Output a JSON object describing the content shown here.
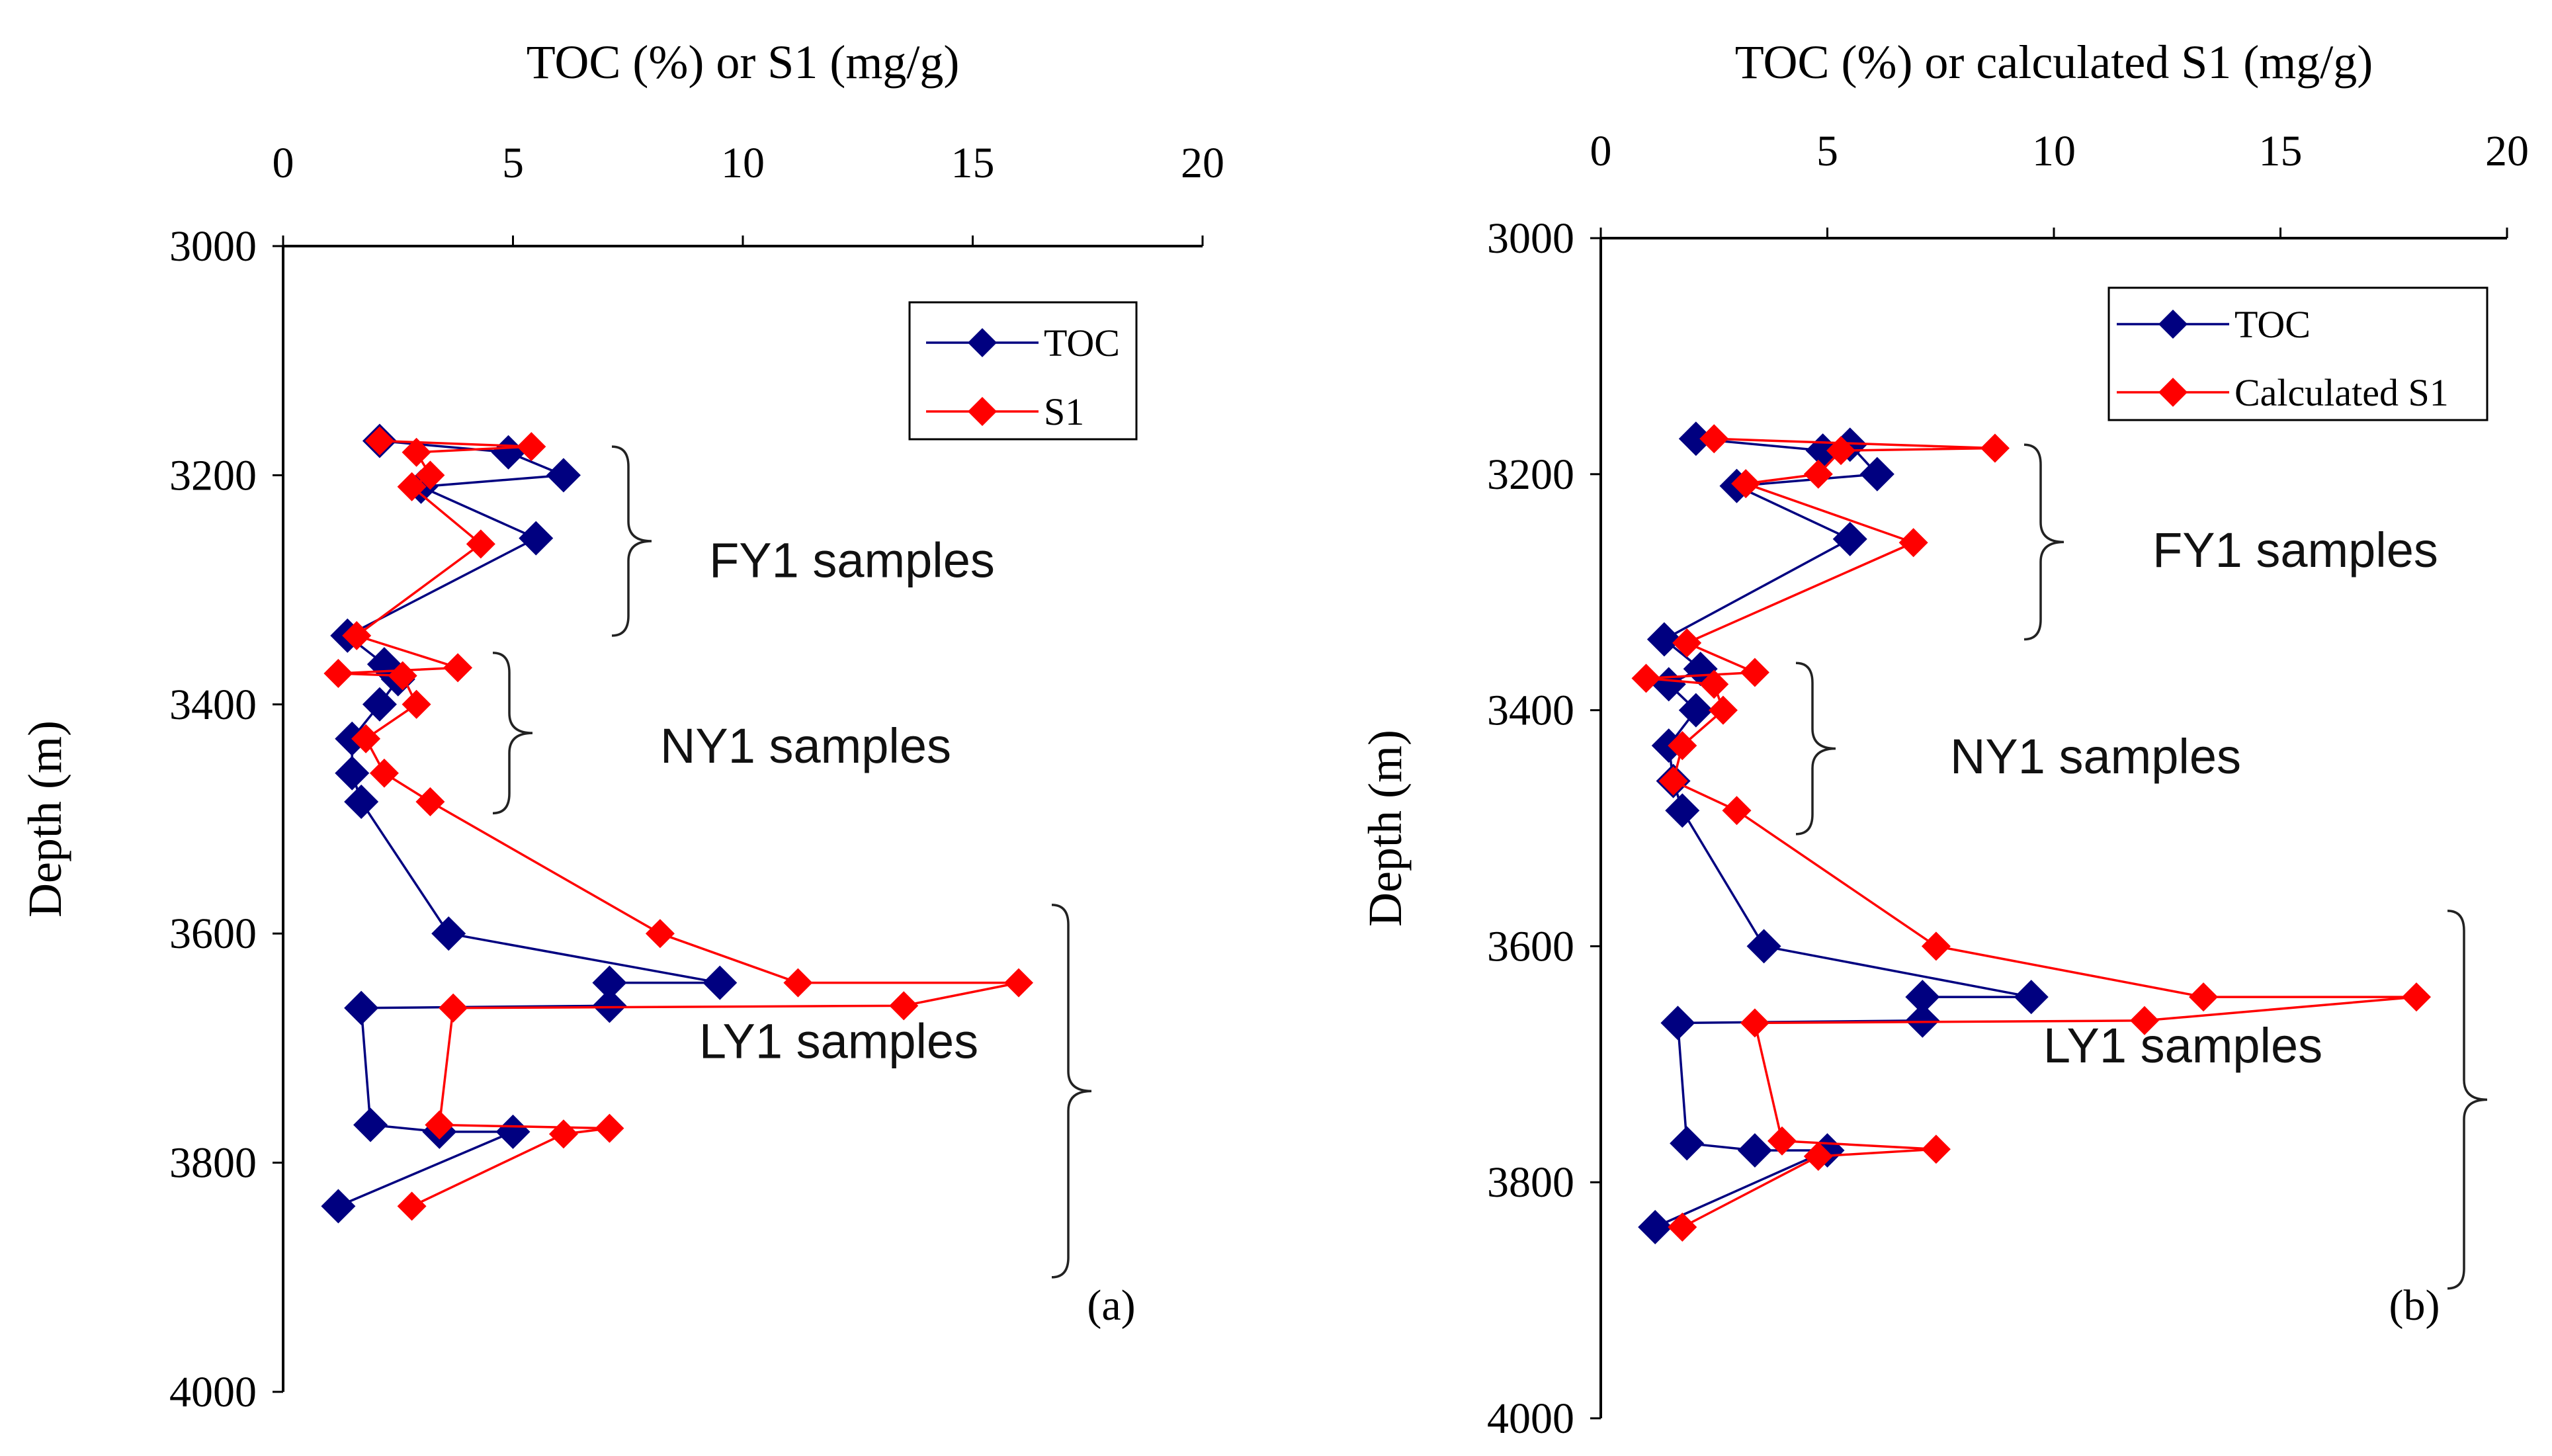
{
  "chart_data": [
    {
      "type": "line",
      "panel_label": "(a)",
      "title": "TOC (%) or S1 (mg/g)",
      "xlabel": "TOC (%) or S1 (mg/g)",
      "ylabel": "Depth (m)",
      "xlim": [
        0,
        20
      ],
      "ylim": [
        3000,
        4000
      ],
      "y_inverted": true,
      "x_axis_position": "top",
      "x_ticks": [
        "0",
        "5",
        "10",
        "15",
        "20"
      ],
      "y_ticks": [
        "3000",
        "3200",
        "3400",
        "3600",
        "3800",
        "4000"
      ],
      "legend_position": "top-right",
      "series": [
        {
          "name": "TOC",
          "color": "#000080",
          "points": [
            [
              2.1,
              3170
            ],
            [
              4.9,
              3180
            ],
            [
              6.1,
              3200
            ],
            [
              3.0,
              3210
            ],
            [
              5.5,
              3255
            ],
            [
              1.4,
              3340
            ],
            [
              2.2,
              3365
            ],
            [
              2.5,
              3378
            ],
            [
              2.1,
              3400
            ],
            [
              1.5,
              3430
            ],
            [
              1.5,
              3460
            ],
            [
              1.7,
              3485
            ],
            [
              3.6,
              3600
            ],
            [
              9.5,
              3643
            ],
            [
              7.1,
              3643
            ],
            [
              7.1,
              3663
            ],
            [
              1.7,
              3665
            ],
            [
              1.9,
              3767
            ],
            [
              3.4,
              3773
            ],
            [
              5.0,
              3773
            ],
            [
              1.2,
              3838
            ]
          ]
        },
        {
          "name": "S1",
          "color": "#ff0000",
          "points": [
            [
              2.1,
              3170
            ],
            [
              5.4,
              3175
            ],
            [
              2.9,
              3180
            ],
            [
              3.2,
              3200
            ],
            [
              2.8,
              3210
            ],
            [
              4.3,
              3260
            ],
            [
              1.6,
              3340
            ],
            [
              3.8,
              3368
            ],
            [
              1.2,
              3373
            ],
            [
              2.6,
              3375
            ],
            [
              2.9,
              3400
            ],
            [
              1.8,
              3430
            ],
            [
              2.2,
              3460
            ],
            [
              3.2,
              3485
            ],
            [
              8.2,
              3600
            ],
            [
              11.2,
              3643
            ],
            [
              16.0,
              3643
            ],
            [
              13.5,
              3663
            ],
            [
              3.7,
              3665
            ],
            [
              3.4,
              3767
            ],
            [
              7.1,
              3770
            ],
            [
              6.1,
              3775
            ],
            [
              2.8,
              3838
            ]
          ]
        }
      ],
      "annotations": [
        "FY1 samples",
        "NY1 samples",
        "LY1 samples"
      ]
    },
    {
      "type": "line",
      "panel_label": "(b)",
      "title": "TOC (%) or calculated S1 (mg/g)",
      "xlabel": "TOC (%) or calculated S1 (mg/g)",
      "ylabel": "Depth (m)",
      "xlim": [
        0,
        20
      ],
      "ylim": [
        3000,
        4000
      ],
      "y_inverted": true,
      "x_axis_position": "top",
      "x_ticks": [
        "0",
        "5",
        "10",
        "15",
        "20"
      ],
      "y_ticks": [
        "3000",
        "3200",
        "3400",
        "3600",
        "3800",
        "4000"
      ],
      "legend_position": "top-right",
      "series": [
        {
          "name": "TOC",
          "color": "#000080",
          "points": [
            [
              2.1,
              3170
            ],
            [
              4.9,
              3180
            ],
            [
              5.5,
              3175
            ],
            [
              6.1,
              3200
            ],
            [
              3.0,
              3210
            ],
            [
              5.5,
              3255
            ],
            [
              1.4,
              3340
            ],
            [
              2.2,
              3365
            ],
            [
              1.5,
              3378
            ],
            [
              2.1,
              3400
            ],
            [
              1.5,
              3430
            ],
            [
              1.6,
              3460
            ],
            [
              1.8,
              3485
            ],
            [
              3.6,
              3600
            ],
            [
              9.5,
              3643
            ],
            [
              7.1,
              3643
            ],
            [
              7.1,
              3663
            ],
            [
              1.7,
              3665
            ],
            [
              1.9,
              3767
            ],
            [
              3.4,
              3773
            ],
            [
              5.0,
              3773
            ],
            [
              1.2,
              3838
            ]
          ]
        },
        {
          "name": "Calculated S1",
          "color": "#ff0000",
          "points": [
            [
              2.5,
              3170
            ],
            [
              8.7,
              3178
            ],
            [
              5.3,
              3180
            ],
            [
              4.8,
              3200
            ],
            [
              3.2,
              3208
            ],
            [
              6.9,
              3258
            ],
            [
              1.9,
              3343
            ],
            [
              3.4,
              3368
            ],
            [
              1.0,
              3373
            ],
            [
              2.5,
              3378
            ],
            [
              2.7,
              3400
            ],
            [
              1.8,
              3430
            ],
            [
              1.6,
              3460
            ],
            [
              3.0,
              3485
            ],
            [
              7.4,
              3600
            ],
            [
              13.3,
              3643
            ],
            [
              18.0,
              3643
            ],
            [
              12.0,
              3663
            ],
            [
              3.4,
              3665
            ],
            [
              4.0,
              3765
            ],
            [
              7.4,
              3772
            ],
            [
              4.8,
              3778
            ],
            [
              1.8,
              3838
            ]
          ]
        }
      ],
      "annotations": [
        "FY1 samples",
        "NY1 samples",
        "LY1 samples"
      ]
    }
  ]
}
